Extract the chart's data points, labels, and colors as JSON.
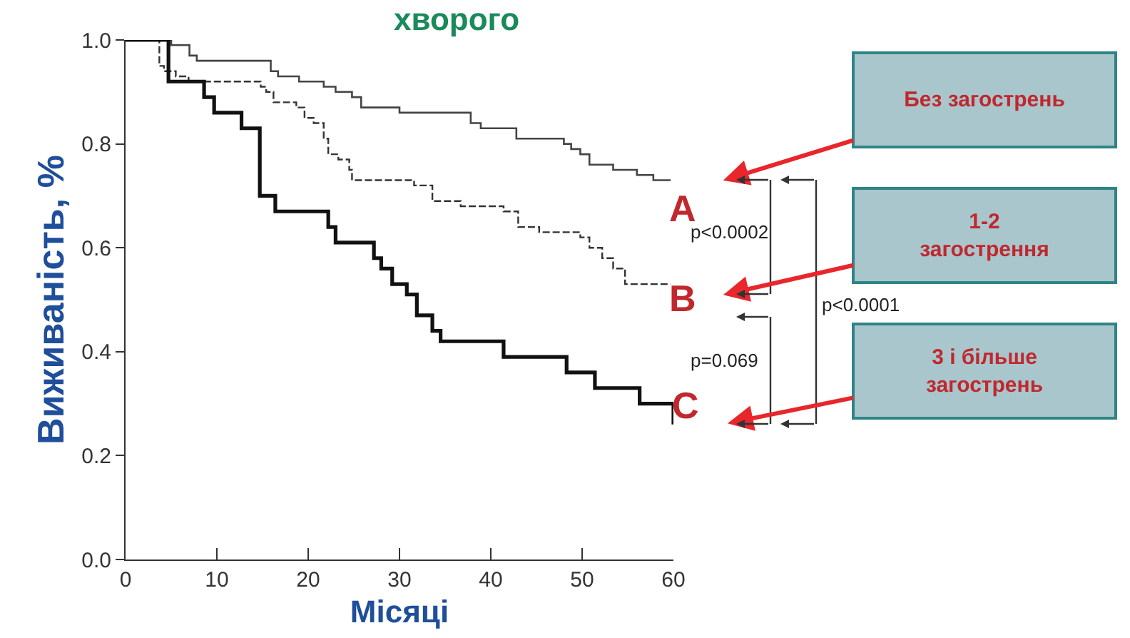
{
  "chart_data": {
    "type": "step",
    "title": "хворого",
    "xlabel": "Місяці",
    "ylabel": "Виживаність, %",
    "xlim": [
      0,
      60
    ],
    "xticks": [
      0,
      10,
      20,
      30,
      40,
      50,
      60
    ],
    "ylim": [
      0,
      1
    ],
    "yticks": [
      {
        "value": 0,
        "label": "0.0"
      },
      {
        "value": 0.2,
        "label": "0.2"
      },
      {
        "value": 0.4,
        "label": "0.4"
      },
      {
        "value": 0.6,
        "label": "0.6"
      },
      {
        "value": 0.8,
        "label": "0.8"
      },
      {
        "value": 1,
        "label": "1.0"
      }
    ],
    "legend": false,
    "marker": "none",
    "series": [
      {
        "color": "#444444",
        "line_style": "solid",
        "x": [
          0,
          5,
          7,
          7.8,
          15.9,
          16.7,
          19,
          21.7,
          23,
          24.8,
          25.8,
          30,
          37.8,
          38.9,
          42.8,
          48,
          48.8,
          49.8,
          50.8,
          51.6,
          53.4,
          56,
          57.8,
          59.7
        ],
        "values": [
          1,
          0.99,
          0.97,
          0.96,
          0.94,
          0.93,
          0.92,
          0.91,
          0.9,
          0.89,
          0.87,
          0.86,
          0.84,
          0.83,
          0.81,
          0.8,
          0.79,
          0.78,
          0.76,
          0.76,
          0.75,
          0.74,
          0.73,
          0.73
        ]
      },
      {
        "color": "#333333",
        "line_style": "dashed",
        "x": [
          0,
          3.7,
          4.2,
          5.5,
          6.9,
          14.8,
          15.4,
          16.2,
          18.7,
          19.6,
          20.6,
          21.7,
          22.2,
          23.3,
          24.5,
          24.8,
          31.6,
          33.6,
          36.7,
          41.4,
          43,
          45.3,
          49.8,
          50.8,
          52.2,
          53.4,
          54.7,
          59.7
        ],
        "values": [
          1,
          0.95,
          0.94,
          0.93,
          0.92,
          0.91,
          0.9,
          0.88,
          0.87,
          0.85,
          0.84,
          0.81,
          0.78,
          0.77,
          0.75,
          0.73,
          0.72,
          0.69,
          0.68,
          0.67,
          0.64,
          0.63,
          0.62,
          0.6,
          0.58,
          0.56,
          0.53,
          0.53
        ]
      },
      {
        "color": "#111111",
        "line_style": "solid",
        "x": [
          0,
          4.7,
          8.6,
          9.7,
          12.7,
          14.7,
          16.4,
          22.2,
          23,
          27.2,
          28,
          29.2,
          30.8,
          31.9,
          33.6,
          34.5,
          41.4,
          48.3,
          51.4,
          56.3,
          60
        ],
        "values": [
          1,
          0.92,
          0.89,
          0.86,
          0.83,
          0.7,
          0.67,
          0.64,
          0.61,
          0.58,
          0.56,
          0.53,
          0.51,
          0.47,
          0.44,
          0.42,
          0.39,
          0.36,
          0.33,
          0.3,
          0.26
        ]
      }
    ],
    "annotations": [
      "p<0.0002",
      "p=0.069",
      "p<0.0001",
      "Без загострень",
      "1-2\nзагострення",
      "3 і більше\nзагострень",
      "A",
      "B",
      "C"
    ]
  }
}
